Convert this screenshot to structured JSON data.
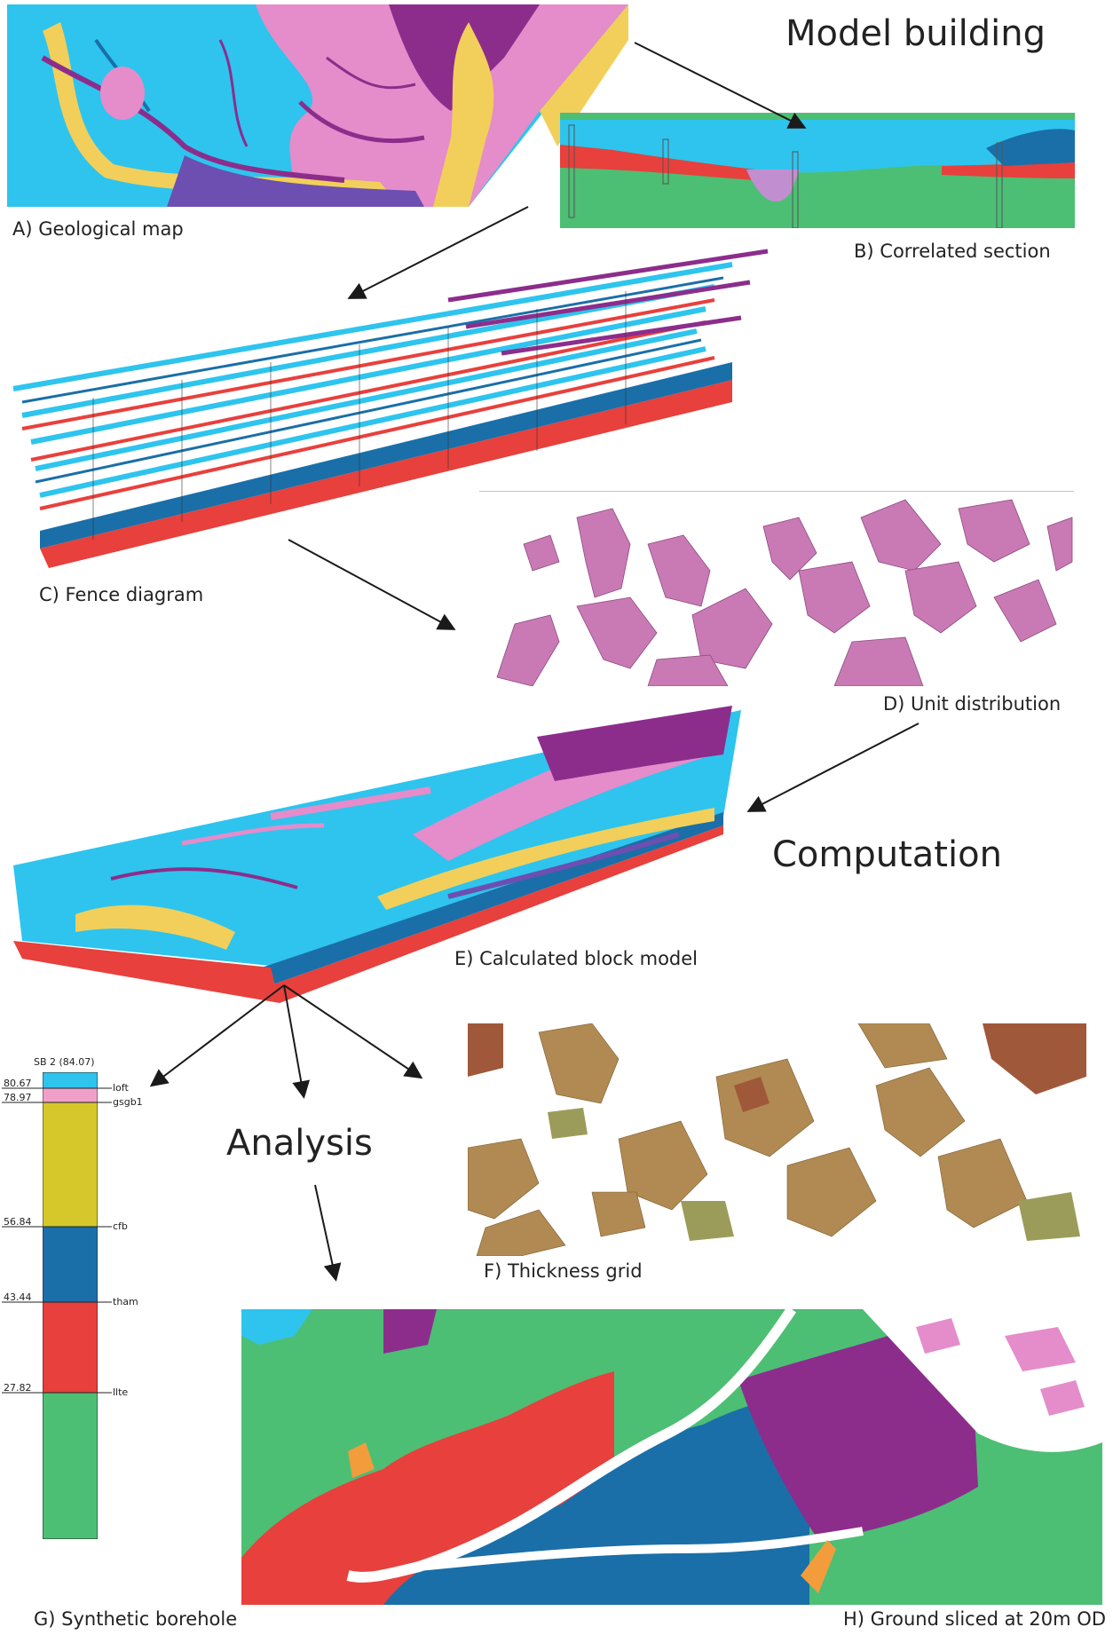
{
  "stages": {
    "model_building": "Model building",
    "computation": "Computation",
    "analysis": "Analysis"
  },
  "captions": {
    "a": "A) Geological map",
    "b": "B) Correlated section",
    "c": "C) Fence diagram",
    "d": "D) Unit distribution",
    "e": "E) Calculated block model",
    "f": "F) Thickness grid",
    "g": "G) Synthetic borehole",
    "h": "H) Ground sliced at 20m OD"
  },
  "borehole": {
    "title": "SB 2 (84.07)",
    "layers": [
      {
        "depth": "80.67",
        "unit": "loft",
        "color": "#2ec4ee"
      },
      {
        "depth": "78.97",
        "unit": "gsgb1",
        "color": "#f0a0c8"
      },
      {
        "depth": "56.84",
        "unit": "cfb",
        "color": "#d6c82a"
      },
      {
        "depth": "43.44",
        "unit": "tham",
        "color": "#1a6fa8"
      },
      {
        "depth": "27.82",
        "unit": "llte",
        "color": "#e8403c"
      }
    ],
    "base_color": "#4cbf74"
  },
  "colors": {
    "cyan": "#2ec4ee",
    "pink": "#e58ccb",
    "purple": "#8c2d8c",
    "yellow": "#f2cf5a",
    "red": "#e8403c",
    "blue": "#1a6fa8",
    "green": "#4cbf74",
    "orange": "#f39c3c"
  }
}
